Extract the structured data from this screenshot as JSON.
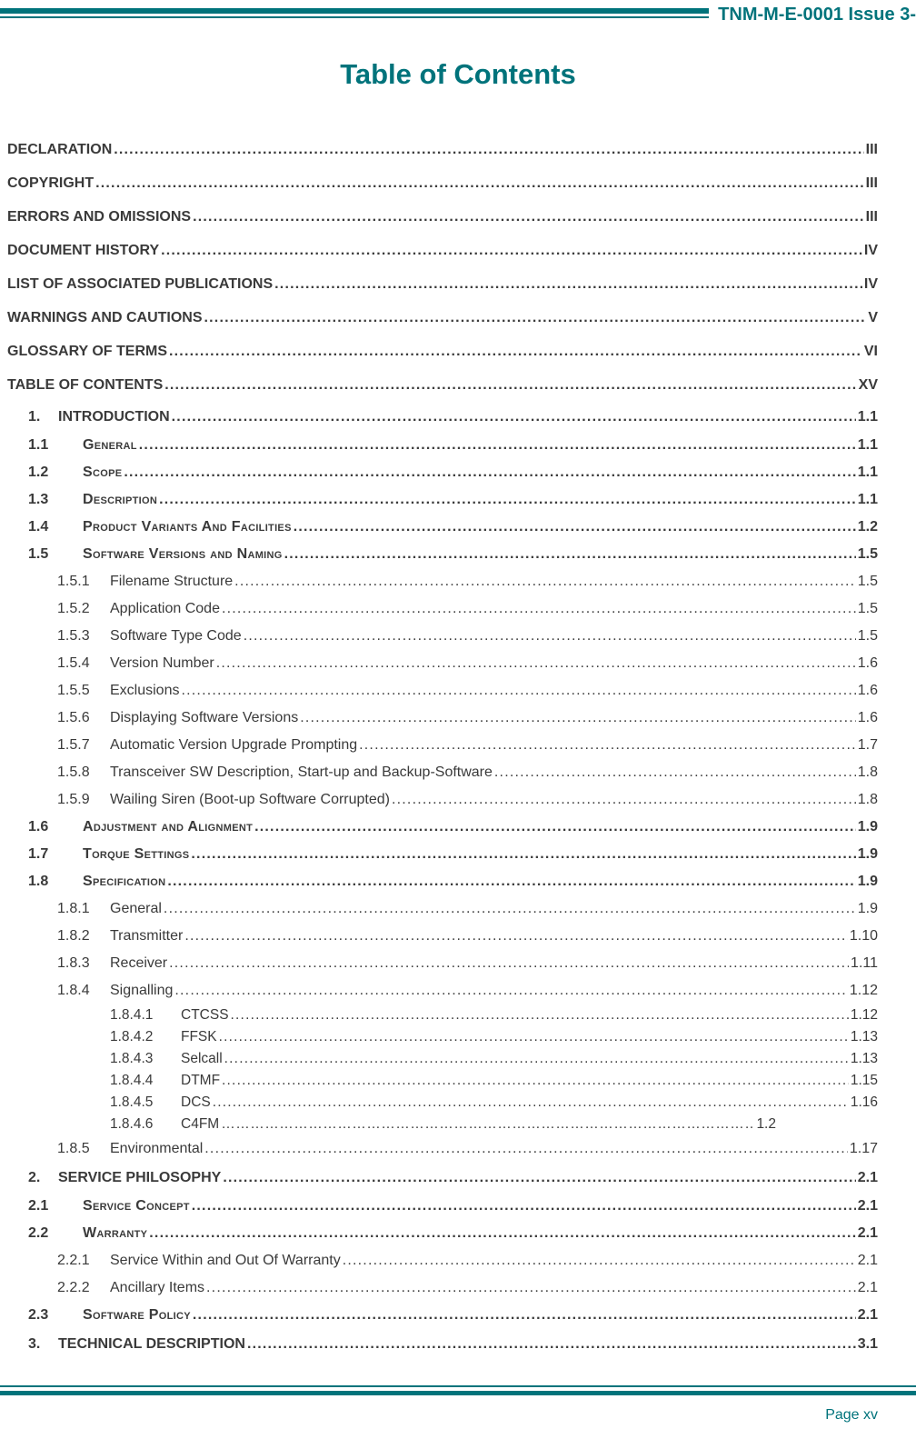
{
  "colors": {
    "accent": "#00737b",
    "text": "#3a3a3a"
  },
  "header": {
    "doc_ref": "TNM-M-E-0001 Issue 3-"
  },
  "title": "Table of Contents",
  "footer": {
    "page_label": "Page xv"
  },
  "toc": {
    "rows": [
      {
        "lvl": "fm",
        "label": "DECLARATION",
        "page": "III"
      },
      {
        "lvl": "fm",
        "label": "COPYRIGHT",
        "page": "III"
      },
      {
        "lvl": "fm",
        "label": "ERRORS AND OMISSIONS",
        "page": "III"
      },
      {
        "lvl": "fm",
        "label": "DOCUMENT HISTORY",
        "page": "IV"
      },
      {
        "lvl": "fm",
        "label": "LIST OF ASSOCIATED PUBLICATIONS",
        "page": "IV"
      },
      {
        "lvl": "fm",
        "label": "WARNINGS AND CAUTIONS",
        "page": "V"
      },
      {
        "lvl": "fm",
        "label": "GLOSSARY OF TERMS",
        "page": "VI"
      },
      {
        "lvl": "fm",
        "label": "TABLE OF CONTENTS",
        "page": "XV"
      },
      {
        "lvl": "ch",
        "num": "1.",
        "label": "INTRODUCTION",
        "page": "1.1"
      },
      {
        "lvl": "s1",
        "sc": true,
        "num": "1.1",
        "label": "General",
        "page": "1.1"
      },
      {
        "lvl": "s1",
        "sc": true,
        "num": "1.2",
        "label": "Scope",
        "page": "1.1"
      },
      {
        "lvl": "s1",
        "sc": true,
        "num": "1.3",
        "label": "Description",
        "page": "1.1"
      },
      {
        "lvl": "s1",
        "sc": true,
        "num": "1.4",
        "label": "Product Variants And Facilities",
        "page": "1.2"
      },
      {
        "lvl": "s1",
        "sc": true,
        "num": "1.5",
        "label": "Software Versions and Naming",
        "page": "1.5"
      },
      {
        "lvl": "s2",
        "num": "1.5.1",
        "label": "Filename Structure",
        "page": "1.5"
      },
      {
        "lvl": "s2",
        "num": "1.5.2",
        "label": "Application Code",
        "page": "1.5"
      },
      {
        "lvl": "s2",
        "num": "1.5.3",
        "label": "Software Type Code",
        "page": "1.5"
      },
      {
        "lvl": "s2",
        "num": "1.5.4",
        "label": "Version Number",
        "page": "1.6"
      },
      {
        "lvl": "s2",
        "num": "1.5.5",
        "label": "Exclusions",
        "page": "1.6"
      },
      {
        "lvl": "s2",
        "num": "1.5.6",
        "label": "Displaying Software Versions",
        "page": "1.6"
      },
      {
        "lvl": "s2",
        "num": "1.5.7",
        "label": "Automatic Version Upgrade Prompting",
        "page": "1.7"
      },
      {
        "lvl": "s2",
        "num": "1.5.8",
        "label": "Transceiver SW Description, Start-up and Backup-Software",
        "page": "1.8"
      },
      {
        "lvl": "s2",
        "num": "1.5.9",
        "label": "Wailing Siren (Boot-up Software Corrupted)",
        "page": "1.8"
      },
      {
        "lvl": "s1",
        "sc": true,
        "num": "1.6",
        "label": "Adjustment and Alignment",
        "page": "1.9"
      },
      {
        "lvl": "s1",
        "sc": true,
        "num": "1.7",
        "label": "Torque Settings",
        "page": "1.9"
      },
      {
        "lvl": "s1",
        "sc": true,
        "num": "1.8",
        "label": "Specification",
        "page": "1.9"
      },
      {
        "lvl": "s2",
        "num": "1.8.1",
        "label": "General",
        "page": "1.9"
      },
      {
        "lvl": "s2",
        "num": "1.8.2",
        "label": "Transmitter",
        "page": "1.10"
      },
      {
        "lvl": "s2",
        "num": "1.8.3",
        "label": "Receiver",
        "page": "1.11"
      },
      {
        "lvl": "s2",
        "num": "1.8.4",
        "label": "Signalling",
        "page": "1.12"
      },
      {
        "lvl": "s3",
        "num": "1.8.4.1",
        "label": "CTCSS",
        "page": "1.12"
      },
      {
        "lvl": "s3",
        "num": "1.8.4.2",
        "label": "FFSK",
        "page": "1.13"
      },
      {
        "lvl": "s3",
        "num": "1.8.4.3",
        "label": "Selcall",
        "page": "1.13"
      },
      {
        "lvl": "s3",
        "num": "1.8.4.4",
        "label": "DTMF",
        "page": "1.15"
      },
      {
        "lvl": "s3",
        "num": "1.8.4.5",
        "label": "DCS",
        "page": "1.16"
      },
      {
        "lvl": "s3",
        "num": "1.8.4.6",
        "label": "C4FM",
        "page": "1.2",
        "leader": "ellipsis",
        "short": true
      },
      {
        "lvl": "s2",
        "num": "1.8.5",
        "label": "Environmental",
        "page": "1.17"
      },
      {
        "lvl": "ch",
        "num": "2.",
        "label": "SERVICE PHILOSOPHY",
        "page": "2.1"
      },
      {
        "lvl": "s1",
        "sc": true,
        "num": "2.1",
        "label": "Service Concept",
        "page": "2.1"
      },
      {
        "lvl": "s1",
        "sc": true,
        "num": "2.2",
        "label": "Warranty",
        "page": "2.1"
      },
      {
        "lvl": "s2",
        "num": "2.2.1",
        "label": "Service Within and Out Of Warranty",
        "page": "2.1"
      },
      {
        "lvl": "s2",
        "num": "2.2.2",
        "label": "Ancillary Items",
        "page": "2.1"
      },
      {
        "lvl": "s1",
        "sc": true,
        "num": "2.3",
        "label": "Software Policy",
        "page": "2.1"
      },
      {
        "lvl": "ch",
        "num": "3.",
        "label": "TECHNICAL DESCRIPTION",
        "page": "3.1"
      }
    ]
  }
}
